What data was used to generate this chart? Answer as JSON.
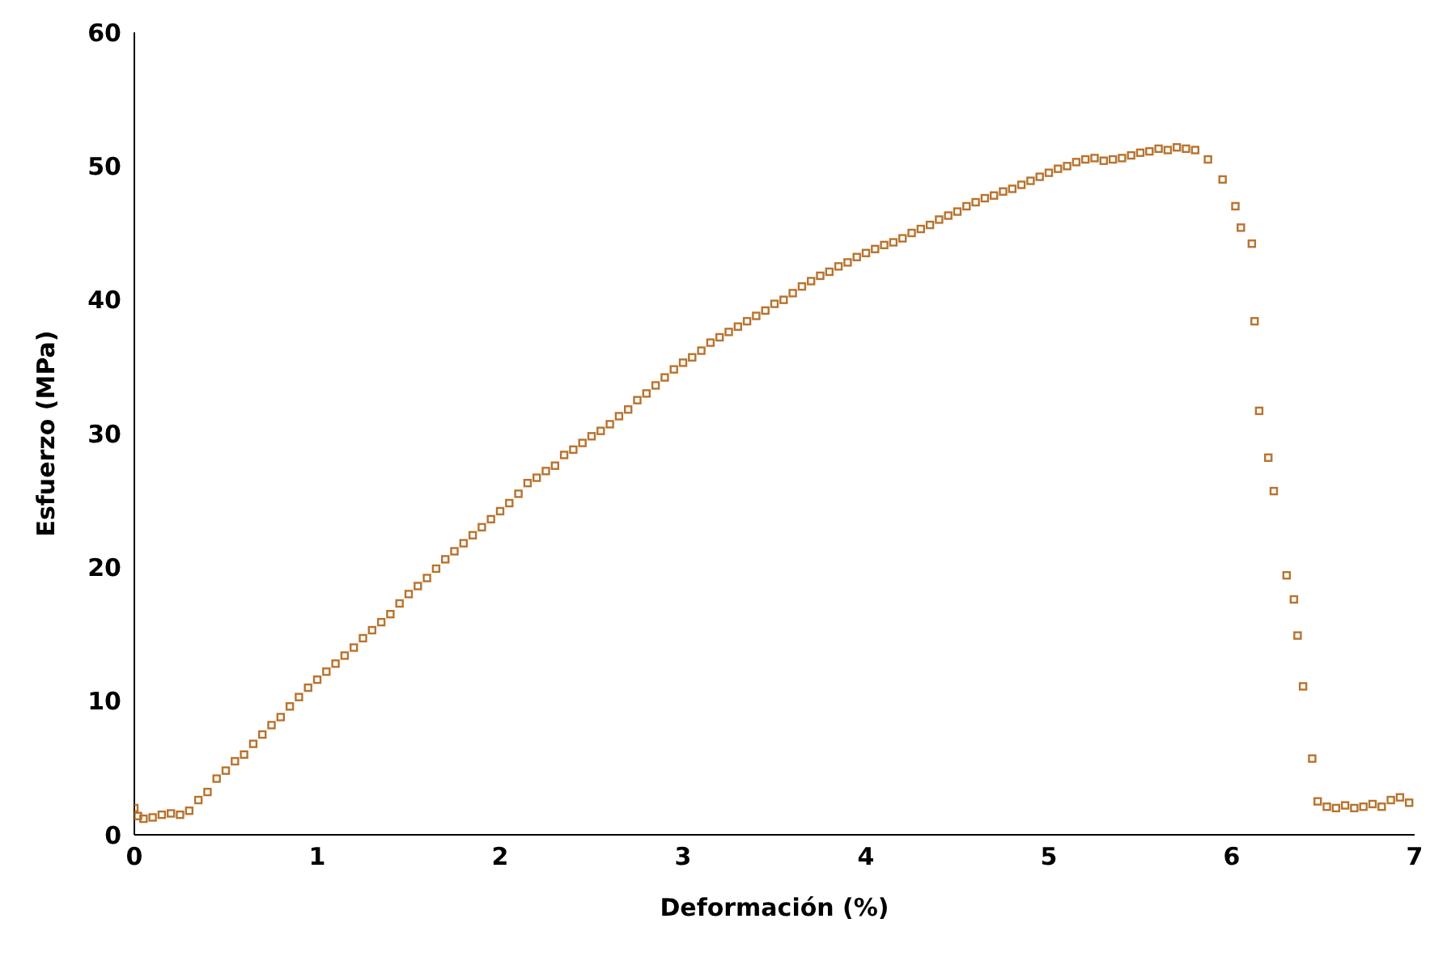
{
  "chart_data": {
    "type": "scatter",
    "xlabel": "Deformación (%)",
    "ylabel": "Esfuerzo (MPa)",
    "xlim": [
      0,
      7
    ],
    "xticks": [
      0,
      1,
      2,
      3,
      4,
      5,
      6,
      7
    ],
    "ylim": [
      0,
      60
    ],
    "yticks": [
      0,
      10,
      20,
      30,
      40,
      50,
      60
    ],
    "grid": false,
    "legend": false,
    "marker": "square",
    "series": [
      {
        "color": "#b8732e",
        "x": [
          0,
          0.02,
          0.05,
          0.1,
          0.15,
          0.2,
          0.25,
          0.3,
          0.35,
          0.4,
          0.45,
          0.5,
          0.55,
          0.6,
          0.65,
          0.7,
          0.75,
          0.8,
          0.85,
          0.9,
          0.95,
          1.0,
          1.05,
          1.1,
          1.15,
          1.2,
          1.25,
          1.3,
          1.35,
          1.4,
          1.45,
          1.5,
          1.55,
          1.6,
          1.65,
          1.7,
          1.75,
          1.8,
          1.85,
          1.9,
          1.95,
          2.0,
          2.05,
          2.1,
          2.15,
          2.2,
          2.25,
          2.3,
          2.35,
          2.4,
          2.45,
          2.5,
          2.55,
          2.6,
          2.65,
          2.7,
          2.75,
          2.8,
          2.85,
          2.9,
          2.95,
          3.0,
          3.05,
          3.1,
          3.15,
          3.2,
          3.25,
          3.3,
          3.35,
          3.4,
          3.45,
          3.5,
          3.55,
          3.6,
          3.65,
          3.7,
          3.75,
          3.8,
          3.85,
          3.9,
          3.95,
          4.0,
          4.05,
          4.1,
          4.15,
          4.2,
          4.25,
          4.3,
          4.35,
          4.4,
          4.45,
          4.5,
          4.55,
          4.6,
          4.65,
          4.7,
          4.75,
          4.8,
          4.85,
          4.9,
          4.95,
          5.0,
          5.05,
          5.1,
          5.15,
          5.2,
          5.25,
          5.3,
          5.35,
          5.4,
          5.45,
          5.5,
          5.55,
          5.6,
          5.65,
          5.7,
          5.75,
          5.8,
          5.87,
          5.95,
          6.02,
          6.05,
          6.11,
          6.125,
          6.15,
          6.2,
          6.23,
          6.3,
          6.34,
          6.36,
          6.39,
          6.44,
          6.47,
          6.52,
          6.57,
          6.62,
          6.67,
          6.72,
          6.77,
          6.82,
          6.87,
          6.92,
          6.97
        ],
        "values": [
          2.0,
          1.4,
          1.2,
          1.3,
          1.5,
          1.6,
          1.5,
          1.8,
          2.6,
          3.2,
          4.2,
          4.8,
          5.5,
          6.0,
          6.8,
          7.5,
          8.2,
          8.8,
          9.6,
          10.3,
          11.0,
          11.6,
          12.2,
          12.8,
          13.4,
          14.0,
          14.7,
          15.3,
          15.9,
          16.5,
          17.3,
          18.0,
          18.6,
          19.2,
          19.9,
          20.6,
          21.2,
          21.8,
          22.4,
          23.0,
          23.6,
          24.2,
          24.8,
          25.5,
          26.3,
          26.7,
          27.2,
          27.6,
          28.4,
          28.8,
          29.3,
          29.8,
          30.2,
          30.7,
          31.3,
          31.8,
          32.5,
          33.0,
          33.6,
          34.2,
          34.8,
          35.3,
          35.7,
          36.2,
          36.8,
          37.2,
          37.6,
          38.0,
          38.4,
          38.8,
          39.2,
          39.7,
          40.0,
          40.5,
          41.0,
          41.4,
          41.8,
          42.1,
          42.5,
          42.8,
          43.2,
          43.5,
          43.8,
          44.1,
          44.3,
          44.6,
          45.0,
          45.3,
          45.6,
          46.0,
          46.3,
          46.6,
          47.0,
          47.3,
          47.6,
          47.8,
          48.1,
          48.3,
          48.6,
          48.9,
          49.2,
          49.5,
          49.8,
          50.0,
          50.3,
          50.5,
          50.6,
          50.4,
          50.5,
          50.6,
          50.8,
          51.0,
          51.1,
          51.3,
          51.2,
          51.4,
          51.3,
          51.2,
          50.5,
          49.0,
          47.0,
          45.4,
          44.2,
          38.4,
          31.7,
          28.2,
          25.7,
          19.4,
          17.6,
          14.9,
          11.1,
          5.7,
          2.5,
          2.1,
          2.0,
          2.2,
          2.0,
          2.1,
          2.3,
          2.1,
          2.6,
          2.8,
          2.4
        ]
      }
    ]
  }
}
